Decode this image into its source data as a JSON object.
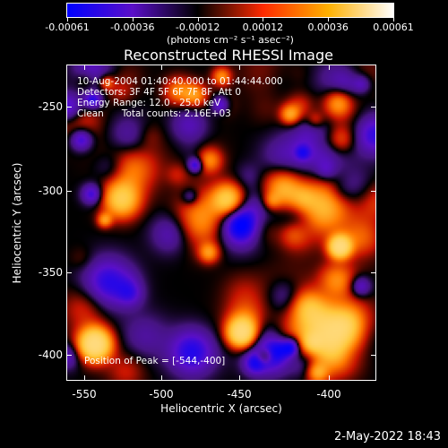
{
  "colorbar": {
    "tick_labels": [
      "-0.00061",
      "-0.00036",
      "-0.00012",
      "0.00012",
      "0.00036",
      "0.00061"
    ],
    "units": "(photons cm⁻² s⁻¹ asec⁻²)",
    "colors": [
      "#0000ff",
      "#5a0fc8",
      "#000000",
      "#ff2a00",
      "#ffb000",
      "#ffffff"
    ]
  },
  "title": "Reconstructed RHESSI Image",
  "annotations": {
    "time_range": "10-Aug-2004 01:40:40.000 to 01:44:44.000",
    "detectors": "Detectors: 3F 4F 5F 6F 7F 8F, Att 0",
    "energy_range": "Energy Range: 12.0 - 25.0 keV",
    "clean_counts": "Clean      Total counts: 2.16E+03",
    "peak": "Position of Peak = [-544,-400]"
  },
  "axes": {
    "x_title": "Heliocentric X (arcsec)",
    "y_title": "Heliocentric Y (arcsec)",
    "x_ticks": [
      "-550",
      "-500",
      "-450",
      "-400"
    ],
    "y_ticks": [
      "-250",
      "-300",
      "-350",
      "-400"
    ]
  },
  "timestamp": "2-May-2022 18:43"
}
